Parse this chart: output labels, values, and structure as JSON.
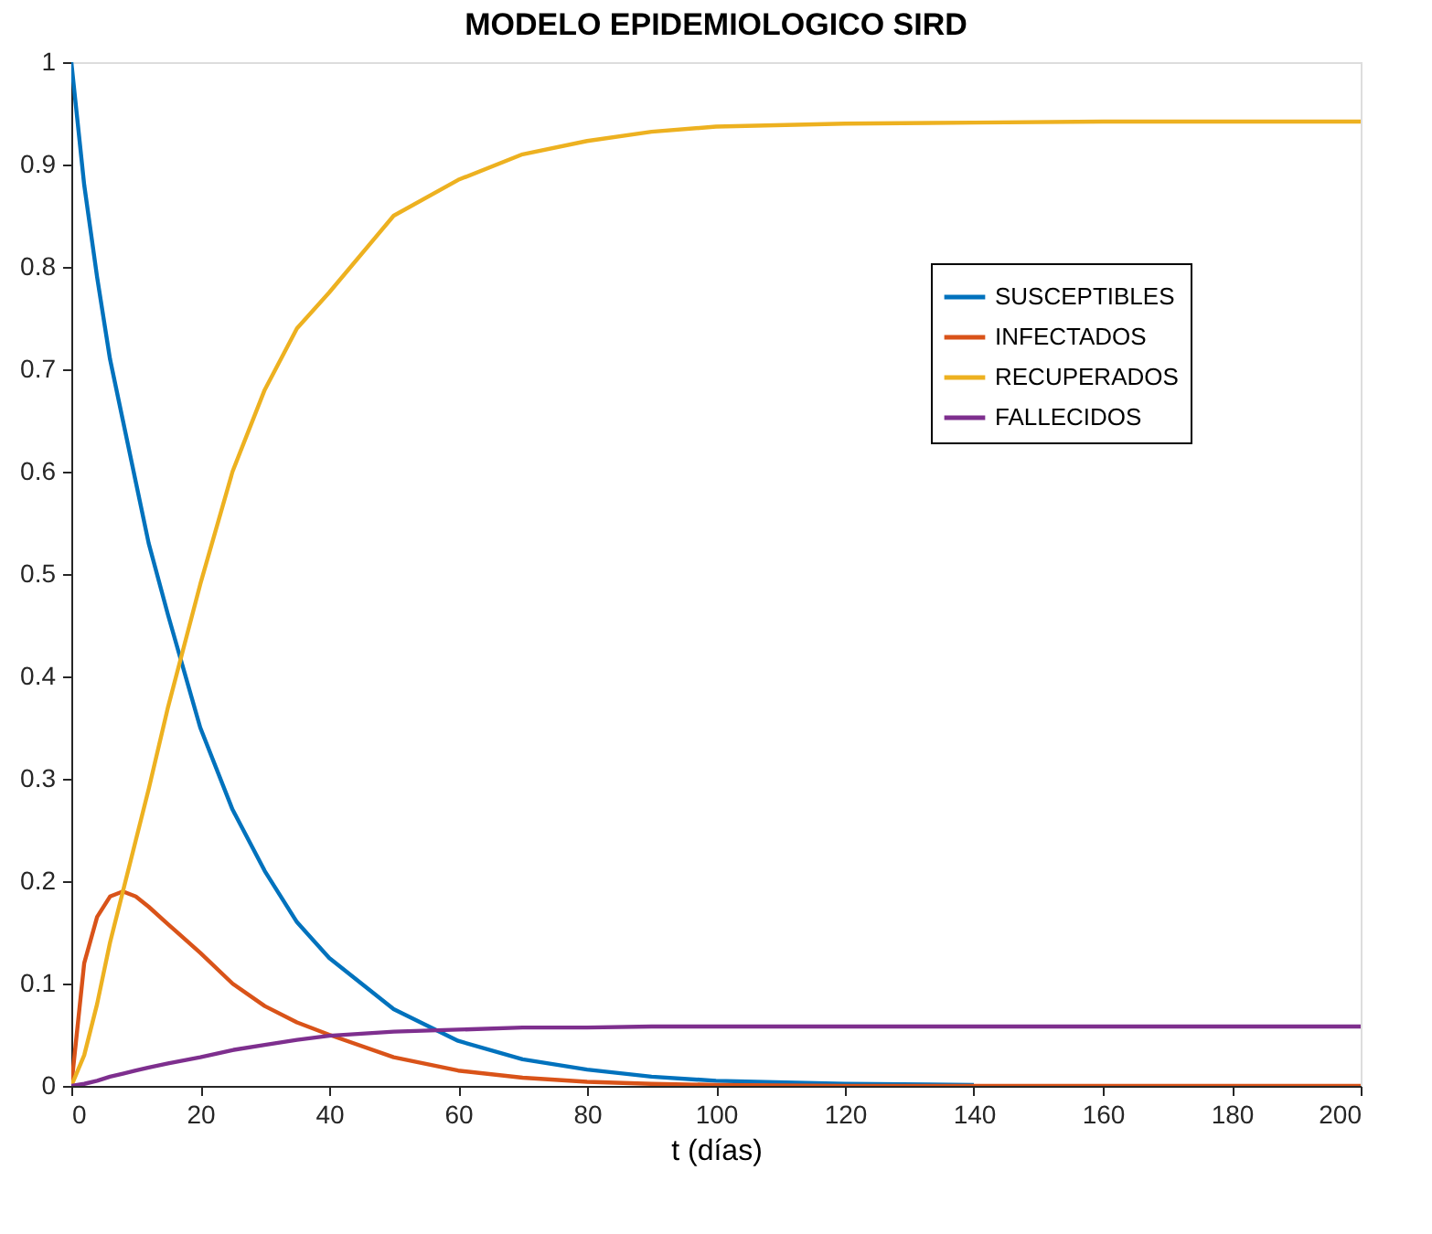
{
  "chart_data": {
    "type": "line",
    "title": "MODELO EPIDEMIOLOGICO SIRD",
    "xlabel": "t (días)",
    "x": [
      0,
      2,
      4,
      6,
      8,
      10,
      12,
      15,
      20,
      25,
      30,
      35,
      40,
      50,
      60,
      70,
      80,
      90,
      100,
      120,
      140,
      160,
      180,
      200
    ],
    "series": [
      {
        "name": "SUSCEPTIBLES",
        "color": "#0072bd",
        "values": [
          1,
          0.88,
          0.79,
          0.71,
          0.65,
          0.59,
          0.53,
          0.46,
          0.35,
          0.27,
          0.21,
          0.16,
          0.125,
          0.075,
          0.044,
          0.026,
          0.016,
          0.009,
          0.005,
          0.002,
          0.001,
          null,
          null,
          null
        ]
      },
      {
        "name": "INFECTADOS",
        "color": "#d95319",
        "values": [
          0,
          0.12,
          0.165,
          0.185,
          0.19,
          0.185,
          0.175,
          0.158,
          0.13,
          0.1,
          0.078,
          0.062,
          0.05,
          0.028,
          0.015,
          0.008,
          0.004,
          0.002,
          0.001,
          0,
          0,
          0,
          0,
          0
        ]
      },
      {
        "name": "RECUPERADOS",
        "color": "#edb120",
        "values": [
          0,
          0.03,
          0.08,
          0.14,
          0.19,
          0.24,
          0.29,
          0.37,
          0.49,
          0.6,
          0.68,
          0.74,
          0.775,
          0.85,
          0.885,
          0.91,
          0.923,
          0.932,
          0.937,
          0.94,
          0.941,
          0.942,
          0.942,
          0.942
        ]
      },
      {
        "name": "FALLECIDOS",
        "color": "#7e2f8e",
        "values": [
          0,
          0.002,
          0.005,
          0.009,
          0.012,
          0.015,
          0.018,
          0.022,
          0.028,
          0.035,
          0.04,
          0.045,
          0.049,
          0.053,
          0.055,
          0.057,
          0.057,
          0.058,
          0.058,
          0.058,
          0.058,
          0.058,
          0.058,
          0.058
        ]
      }
    ],
    "xlim": [
      0,
      200
    ],
    "xticks": [
      0,
      20,
      40,
      60,
      80,
      100,
      120,
      140,
      160,
      180,
      200
    ],
    "ylim": [
      0,
      1
    ],
    "yticks": [
      0,
      0.1,
      0.2,
      0.3,
      0.4,
      0.5,
      0.6,
      0.7,
      0.8,
      0.9,
      1
    ],
    "legend": "right",
    "grid": false
  }
}
